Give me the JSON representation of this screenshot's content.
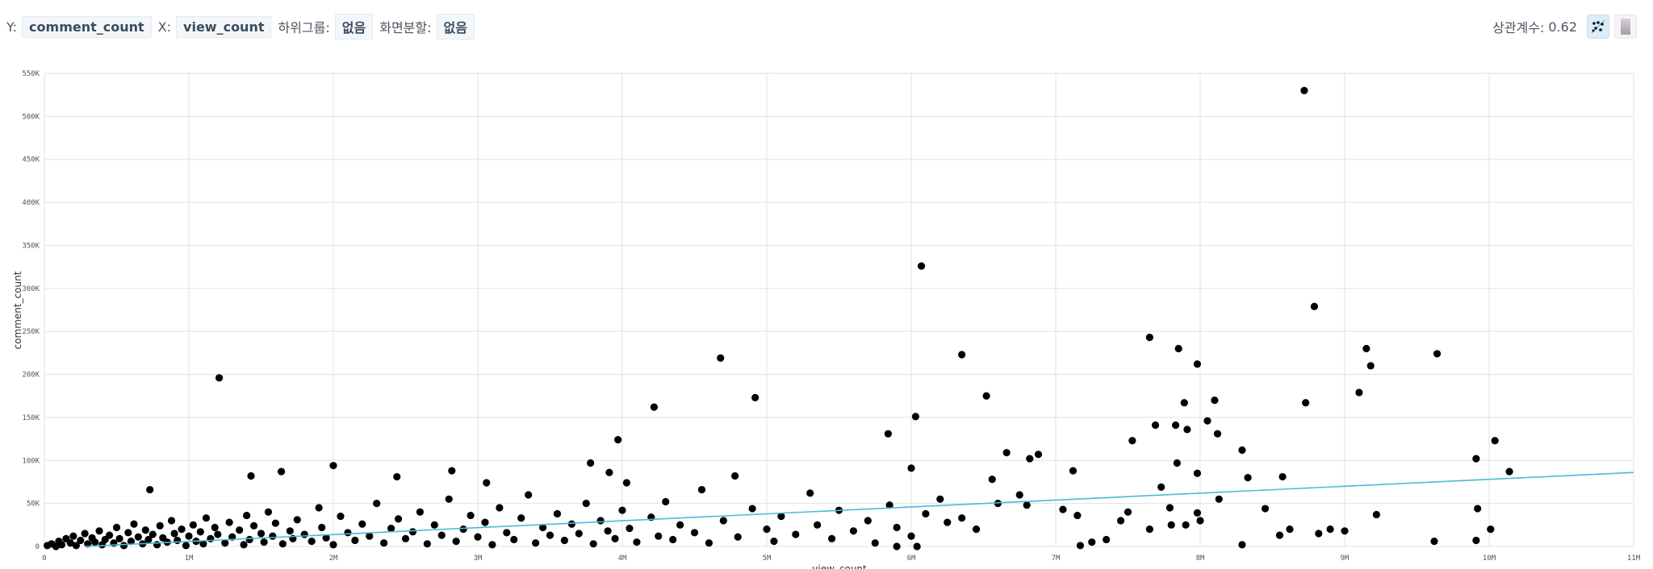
{
  "toolbar": {
    "y_label": "Y:",
    "y_value": "comment_count",
    "x_label": "X:",
    "x_value": "view_count",
    "subgroup_label": "하위그룹:",
    "subgroup_value": "없음",
    "split_label": "화면분할:",
    "split_value": "없음",
    "correlation_label": "상관계수:",
    "correlation_value": "0.62",
    "icons": [
      "scatter-plot-icon",
      "bar-chart-icon"
    ]
  },
  "chart_data": {
    "type": "scatter",
    "xlabel": "view_count",
    "ylabel": "comment_count",
    "xlim": [
      0,
      11000000
    ],
    "ylim": [
      0,
      550000
    ],
    "grid": true,
    "x_ticks": [
      "0",
      "1M",
      "2M",
      "3M",
      "4M",
      "5M",
      "6M",
      "7M",
      "8M",
      "9M",
      "10M",
      "11M"
    ],
    "y_ticks": [
      "0",
      "50K",
      "100K",
      "150K",
      "200K",
      "250K",
      "300K",
      "350K",
      "400K",
      "450K",
      "500K",
      "550K"
    ],
    "point_color": "#000000",
    "trendline": {
      "color": "#4fb8d8",
      "x": [
        280000,
        11000000
      ],
      "y": [
        0,
        86000
      ]
    },
    "points": [
      [
        8720000,
        530000
      ],
      [
        6070000,
        326000
      ],
      [
        8790000,
        279000
      ],
      [
        7650000,
        243000
      ],
      [
        7850000,
        230000
      ],
      [
        9150000,
        230000
      ],
      [
        6350000,
        223000
      ],
      [
        4680000,
        219000
      ],
      [
        7980000,
        212000
      ],
      [
        9180000,
        210000
      ],
      [
        9640000,
        224000
      ],
      [
        1210000,
        196000
      ],
      [
        6520000,
        175000
      ],
      [
        4920000,
        173000
      ],
      [
        9100000,
        179000
      ],
      [
        8100000,
        170000
      ],
      [
        7890000,
        167000
      ],
      [
        8730000,
        167000
      ],
      [
        4220000,
        162000
      ],
      [
        6030000,
        151000
      ],
      [
        8050000,
        146000
      ],
      [
        8120000,
        131000
      ],
      [
        7910000,
        136000
      ],
      [
        7830000,
        141000
      ],
      [
        5840000,
        131000
      ],
      [
        7690000,
        141000
      ],
      [
        7530000,
        123000
      ],
      [
        3970000,
        124000
      ],
      [
        10040000,
        123000
      ],
      [
        9910000,
        102000
      ],
      [
        10140000,
        87000
      ],
      [
        8290000,
        112000
      ],
      [
        6660000,
        109000
      ],
      [
        7840000,
        97000
      ],
      [
        6880000,
        107000
      ],
      [
        6820000,
        102000
      ],
      [
        7980000,
        85000
      ],
      [
        8570000,
        81000
      ],
      [
        8330000,
        80000
      ],
      [
        7120000,
        88000
      ],
      [
        6560000,
        78000
      ],
      [
        7730000,
        69000
      ],
      [
        2000000,
        94000
      ],
      [
        2820000,
        88000
      ],
      [
        1640000,
        87000
      ],
      [
        1430000,
        82000
      ],
      [
        730000,
        66000
      ],
      [
        2440000,
        81000
      ],
      [
        3780000,
        97000
      ],
      [
        3910000,
        86000
      ],
      [
        4030000,
        74000
      ],
      [
        3060000,
        74000
      ],
      [
        4780000,
        82000
      ],
      [
        6000000,
        91000
      ],
      [
        8130000,
        55000
      ],
      [
        7790000,
        45000
      ],
      [
        8450000,
        44000
      ],
      [
        9920000,
        44000
      ],
      [
        9220000,
        37000
      ],
      [
        10010000,
        20000
      ],
      [
        9910000,
        7000
      ],
      [
        9620000,
        6000
      ],
      [
        8290000,
        2000
      ],
      [
        7170000,
        1000
      ],
      [
        5900000,
        0
      ],
      [
        6040000,
        0
      ],
      [
        9000000,
        18000
      ],
      [
        8900000,
        20000
      ],
      [
        8620000,
        20000
      ],
      [
        8550000,
        13000
      ],
      [
        8820000,
        15000
      ],
      [
        7980000,
        39000
      ],
      [
        20000,
        1000
      ],
      [
        50000,
        3000
      ],
      [
        80000,
        0
      ],
      [
        100000,
        6000
      ],
      [
        120000,
        2000
      ],
      [
        150000,
        9000
      ],
      [
        180000,
        4000
      ],
      [
        200000,
        12000
      ],
      [
        220000,
        1000
      ],
      [
        250000,
        7000
      ],
      [
        280000,
        15000
      ],
      [
        300000,
        3000
      ],
      [
        330000,
        10000
      ],
      [
        350000,
        5000
      ],
      [
        380000,
        18000
      ],
      [
        400000,
        2000
      ],
      [
        420000,
        8000
      ],
      [
        450000,
        13000
      ],
      [
        480000,
        4000
      ],
      [
        500000,
        22000
      ],
      [
        520000,
        9000
      ],
      [
        550000,
        1000
      ],
      [
        580000,
        16000
      ],
      [
        600000,
        6000
      ],
      [
        620000,
        26000
      ],
      [
        650000,
        11000
      ],
      [
        680000,
        3000
      ],
      [
        700000,
        19000
      ],
      [
        720000,
        8000
      ],
      [
        750000,
        14000
      ],
      [
        780000,
        2000
      ],
      [
        800000,
        24000
      ],
      [
        820000,
        10000
      ],
      [
        850000,
        5000
      ],
      [
        880000,
        30000
      ],
      [
        900000,
        15000
      ],
      [
        920000,
        7000
      ],
      [
        950000,
        20000
      ],
      [
        980000,
        1000
      ],
      [
        1000000,
        12000
      ],
      [
        1030000,
        25000
      ],
      [
        1050000,
        6000
      ],
      [
        1080000,
        17000
      ],
      [
        1100000,
        3000
      ],
      [
        1120000,
        33000
      ],
      [
        1150000,
        9000
      ],
      [
        1180000,
        22000
      ],
      [
        1200000,
        14000
      ],
      [
        1250000,
        4000
      ],
      [
        1280000,
        28000
      ],
      [
        1300000,
        11000
      ],
      [
        1350000,
        19000
      ],
      [
        1380000,
        2000
      ],
      [
        1400000,
        36000
      ],
      [
        1420000,
        8000
      ],
      [
        1450000,
        24000
      ],
      [
        1500000,
        15000
      ],
      [
        1520000,
        5000
      ],
      [
        1550000,
        40000
      ],
      [
        1580000,
        12000
      ],
      [
        1600000,
        27000
      ],
      [
        1650000,
        3000
      ],
      [
        1700000,
        18000
      ],
      [
        1720000,
        9000
      ],
      [
        1750000,
        31000
      ],
      [
        1800000,
        14000
      ],
      [
        1850000,
        6000
      ],
      [
        1900000,
        45000
      ],
      [
        1920000,
        22000
      ],
      [
        1950000,
        10000
      ],
      [
        2000000,
        2000
      ],
      [
        2050000,
        35000
      ],
      [
        2100000,
        16000
      ],
      [
        2150000,
        7000
      ],
      [
        2200000,
        26000
      ],
      [
        2250000,
        12000
      ],
      [
        2300000,
        50000
      ],
      [
        2350000,
        4000
      ],
      [
        2400000,
        21000
      ],
      [
        2450000,
        32000
      ],
      [
        2500000,
        9000
      ],
      [
        2550000,
        17000
      ],
      [
        2600000,
        40000
      ],
      [
        2650000,
        3000
      ],
      [
        2700000,
        25000
      ],
      [
        2750000,
        13000
      ],
      [
        2800000,
        55000
      ],
      [
        2850000,
        6000
      ],
      [
        2900000,
        20000
      ],
      [
        2950000,
        36000
      ],
      [
        3000000,
        11000
      ],
      [
        3050000,
        28000
      ],
      [
        3100000,
        2000
      ],
      [
        3150000,
        45000
      ],
      [
        3200000,
        16000
      ],
      [
        3250000,
        8000
      ],
      [
        3300000,
        33000
      ],
      [
        3350000,
        60000
      ],
      [
        3400000,
        4000
      ],
      [
        3450000,
        22000
      ],
      [
        3500000,
        13000
      ],
      [
        3550000,
        38000
      ],
      [
        3600000,
        7000
      ],
      [
        3650000,
        26000
      ],
      [
        3700000,
        15000
      ],
      [
        3750000,
        50000
      ],
      [
        3800000,
        3000
      ],
      [
        3850000,
        30000
      ],
      [
        3900000,
        18000
      ],
      [
        3950000,
        9000
      ],
      [
        4000000,
        42000
      ],
      [
        4050000,
        21000
      ],
      [
        4100000,
        5000
      ],
      [
        4200000,
        34000
      ],
      [
        4250000,
        12000
      ],
      [
        4300000,
        52000
      ],
      [
        4350000,
        8000
      ],
      [
        4400000,
        25000
      ],
      [
        4500000,
        16000
      ],
      [
        4550000,
        66000
      ],
      [
        4600000,
        4000
      ],
      [
        4700000,
        30000
      ],
      [
        4800000,
        11000
      ],
      [
        4900000,
        44000
      ],
      [
        5000000,
        20000
      ],
      [
        5050000,
        6000
      ],
      [
        5100000,
        35000
      ],
      [
        5200000,
        14000
      ],
      [
        5300000,
        62000
      ],
      [
        5350000,
        25000
      ],
      [
        5450000,
        9000
      ],
      [
        5500000,
        42000
      ],
      [
        5600000,
        18000
      ],
      [
        5700000,
        30000
      ],
      [
        5750000,
        4000
      ],
      [
        5850000,
        48000
      ],
      [
        5900000,
        22000
      ],
      [
        6000000,
        12000
      ],
      [
        6100000,
        38000
      ],
      [
        6200000,
        55000
      ],
      [
        6250000,
        28000
      ],
      [
        6350000,
        33000
      ],
      [
        6450000,
        20000
      ],
      [
        6600000,
        50000
      ],
      [
        6750000,
        60000
      ],
      [
        6800000,
        48000
      ],
      [
        7050000,
        43000
      ],
      [
        7150000,
        36000
      ],
      [
        7250000,
        5000
      ],
      [
        7350000,
        8000
      ],
      [
        7450000,
        30000
      ],
      [
        7500000,
        40000
      ],
      [
        7650000,
        20000
      ],
      [
        7800000,
        25000
      ],
      [
        7900000,
        25000
      ],
      [
        8000000,
        30000
      ]
    ]
  }
}
